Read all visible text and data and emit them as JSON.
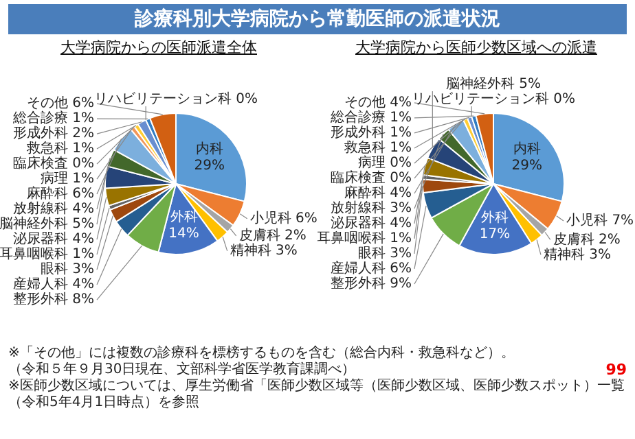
{
  "chart_data": [
    {
      "type": "other",
      "title": "診療科別大学病院から常勤医師の派遣状況",
      "annotations": [
        "※「その他」には複数の診療科を標榜するものを含む（総合内科・救急科など）。",
        "（令和５年９月30日現在、文部科学省医学教育課調べ）",
        "99",
        "※医師少数区域については、厚生労働省「医師少数区域等（医師少数区域、医師少数スポット）一覧（令和5年4月1日時点）を参照"
      ]
    },
    {
      "type": "pie",
      "title": "大学病院からの医師派遣全体",
      "categories": [
        "内科",
        "小児科",
        "皮膚科",
        "精神科",
        "外科",
        "整形外科",
        "産婦人科",
        "眼科",
        "耳鼻咽喉科",
        "泌尿器科",
        "脳神経外科",
        "放射線科",
        "麻酔科",
        "病理",
        "臨床検査",
        "救急科",
        "形成外科",
        "リハビリテーション科",
        "総合診療",
        "その他"
      ],
      "values": [
        29,
        6,
        2,
        3,
        14,
        8,
        4,
        3,
        1,
        4,
        5,
        4,
        6,
        1,
        0,
        1,
        2,
        0,
        1,
        6
      ],
      "value_labels": [
        "29%",
        "6%",
        "2%",
        "3%",
        "14%",
        "8%",
        "4%",
        "3%",
        "1%",
        "4%",
        "5%",
        "4%",
        "6%",
        "1%",
        "0%",
        "1%",
        "2%",
        "0%",
        "1%",
        "6%"
      ],
      "colors": [
        "#5b9bd5",
        "#ed7d31",
        "#a5a5a5",
        "#ffc000",
        "#4472c4",
        "#70ad47",
        "#255e91",
        "#9e480e",
        "#636363",
        "#997300",
        "#264478",
        "#43682b",
        "#7cafdd",
        "#f1975a",
        "#b7b7b7",
        "#ffcd33",
        "#698ed0",
        "#8cc168",
        "#327dc2",
        "#d26012"
      ]
    },
    {
      "type": "pie",
      "title": "大学病院から医師少数区域への派遣",
      "categories": [
        "内科",
        "小児科",
        "皮膚科",
        "精神科",
        "外科",
        "整形外科",
        "産婦人科",
        "眼科",
        "耳鼻咽喉科",
        "泌尿器科",
        "脳神経外科",
        "放射線科",
        "麻酔科",
        "病理",
        "臨床検査",
        "救急科",
        "形成外科",
        "リハビリテーション科",
        "総合診療",
        "その他"
      ],
      "values": [
        29,
        7,
        2,
        3,
        17,
        9,
        6,
        3,
        1,
        4,
        5,
        3,
        4,
        0,
        0,
        1,
        1,
        0,
        1,
        4
      ],
      "value_labels": [
        "29%",
        "7%",
        "2%",
        "3%",
        "17%",
        "9%",
        "6%",
        "3%",
        "1%",
        "4%",
        "5%",
        "3%",
        "4%",
        "0%",
        "0%",
        "1%",
        "1%",
        "0%",
        "1%",
        "4%"
      ],
      "colors": [
        "#5b9bd5",
        "#ed7d31",
        "#a5a5a5",
        "#ffc000",
        "#4472c4",
        "#70ad47",
        "#255e91",
        "#9e480e",
        "#636363",
        "#997300",
        "#264478",
        "#43682b",
        "#7cafdd",
        "#f1975a",
        "#b7b7b7",
        "#ffcd33",
        "#698ed0",
        "#8cc168",
        "#327dc2",
        "#d26012"
      ]
    }
  ]
}
